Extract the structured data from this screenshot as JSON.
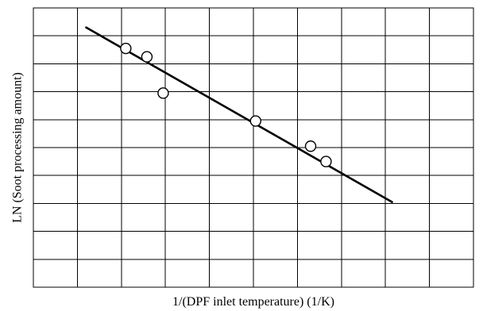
{
  "chart_data": {
    "type": "scatter",
    "title": "",
    "xlabel": "1/(DPF inlet temperature) (1/K)",
    "ylabel": "LN (Soot processing amount)",
    "grid": true,
    "grid_divisions": {
      "x": 10,
      "y": 10
    },
    "xlim": [
      0,
      10
    ],
    "ylim": [
      0,
      10
    ],
    "series": [
      {
        "kind": "points",
        "marker": "open-circle",
        "x": [
          2.1,
          2.58,
          2.95,
          5.05,
          6.3,
          6.65
        ],
        "y": [
          8.55,
          8.25,
          6.95,
          5.95,
          5.05,
          4.5
        ]
      },
      {
        "kind": "fit-line",
        "x": [
          1.2,
          8.15
        ],
        "y": [
          9.3,
          3.05
        ]
      }
    ],
    "colors": {
      "line": "#000000",
      "marker_fill": "#ffffff",
      "background": "#ffffff"
    }
  }
}
